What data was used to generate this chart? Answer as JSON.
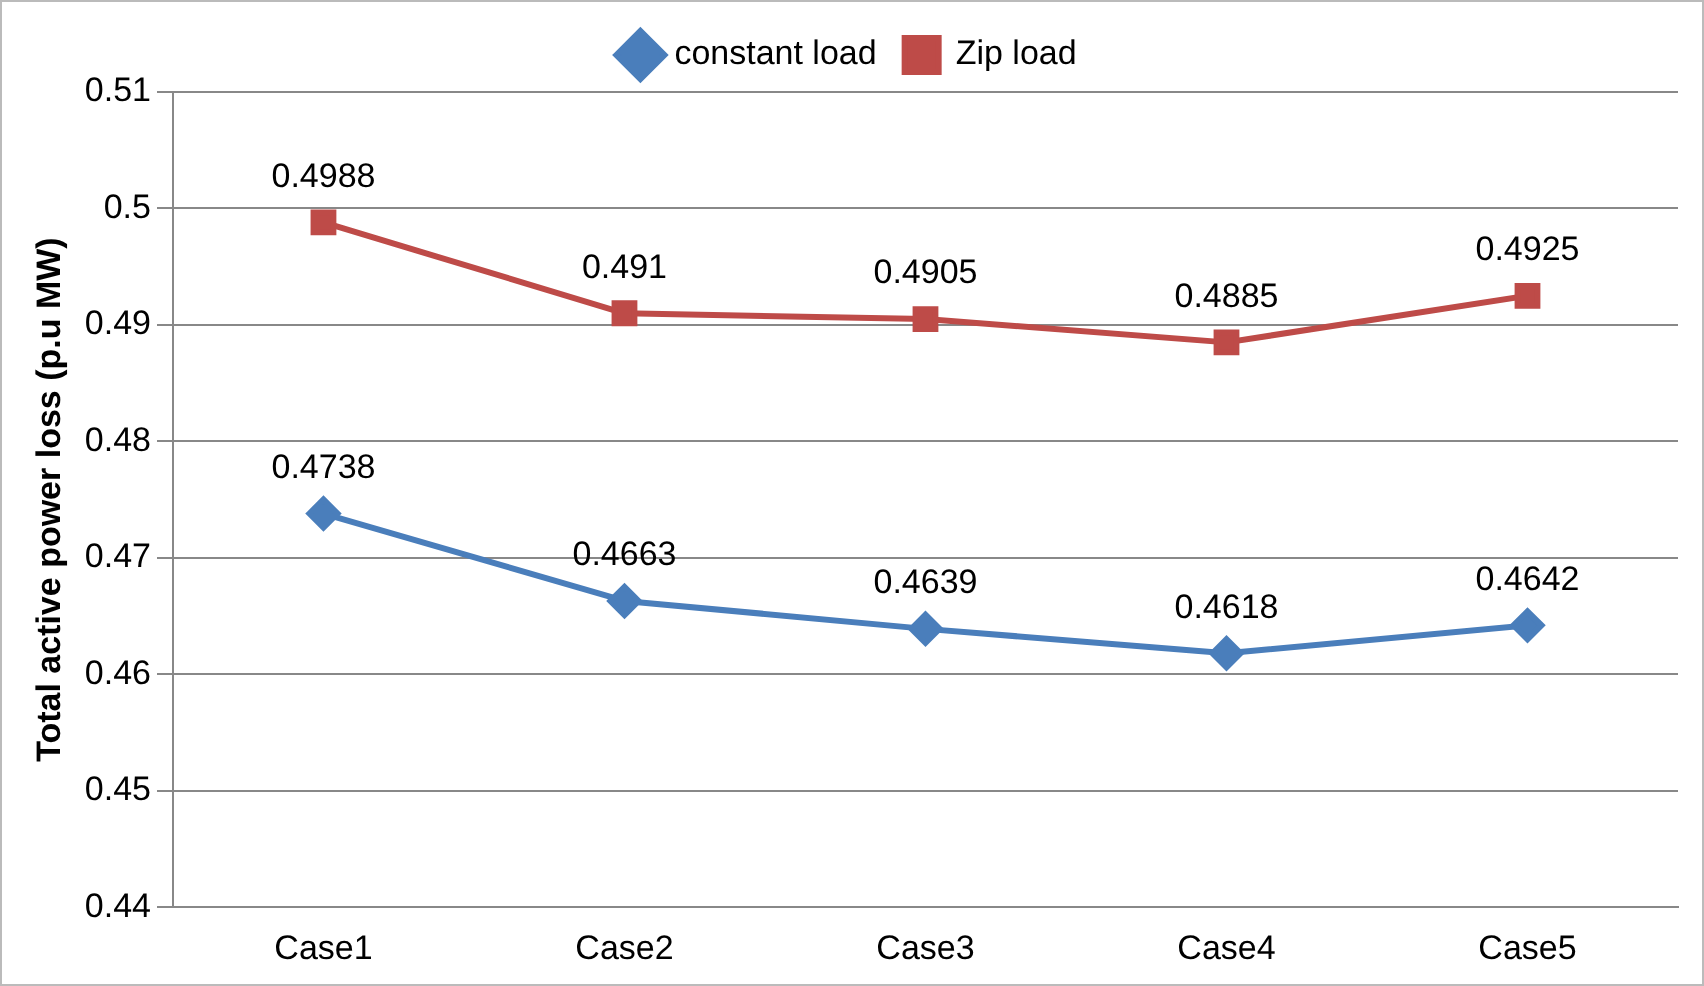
{
  "chart_data": {
    "type": "line",
    "ylabel": "Total active power loss (p.u MW)",
    "categories": [
      "Case1",
      "Case2",
      "Case3",
      "Case4",
      "Case5"
    ],
    "series": [
      {
        "name": "constant load",
        "color": "#4a7ebb",
        "marker": "diamond",
        "values": [
          0.4738,
          0.4663,
          0.4639,
          0.4618,
          0.4642
        ]
      },
      {
        "name": "Zip load",
        "color": "#be4b48",
        "marker": "square",
        "values": [
          0.4988,
          0.491,
          0.4905,
          0.4885,
          0.4925
        ]
      }
    ],
    "ylim": [
      0.44,
      0.51
    ],
    "yticks": [
      0.44,
      0.45,
      0.46,
      0.47,
      0.48,
      0.49,
      0.5,
      0.51
    ],
    "grid": "y",
    "legend": "top",
    "data_labels": true
  }
}
